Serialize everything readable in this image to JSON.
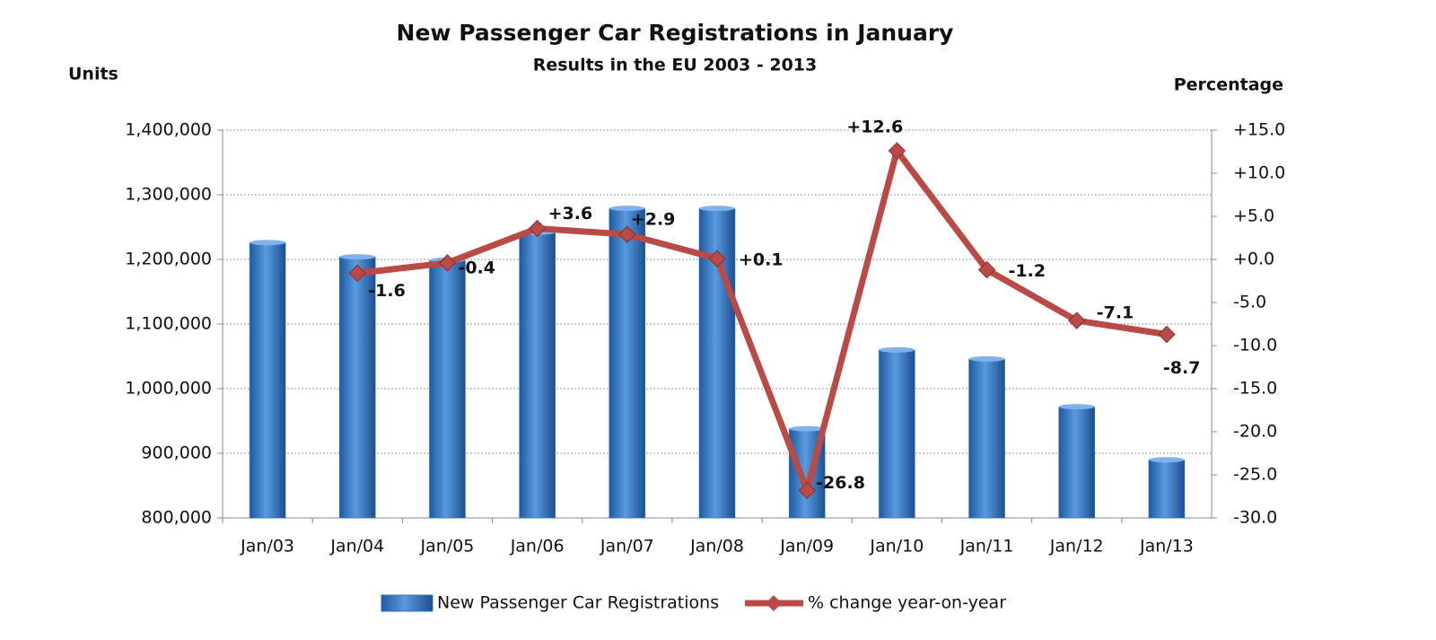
{
  "chart_data": {
    "type": "bar",
    "title": "New Passenger Car Registrations in January",
    "subtitle": "Results in the EU 2003 - 2013",
    "y_label": "Units",
    "y2_label": "Percentage",
    "categories": [
      "Jan/03",
      "Jan/04",
      "Jan/05",
      "Jan/06",
      "Jan/07",
      "Jan/08",
      "Jan/09",
      "Jan/10",
      "Jan/11",
      "Jan/12",
      "Jan/13"
    ],
    "series": [
      {
        "name": "New Passenger Car Registrations",
        "type": "bar",
        "color": "#2f73c0",
        "values": [
          1226000,
          1204000,
          1199000,
          1242000,
          1279000,
          1279000,
          938000,
          1060000,
          1046000,
          972000,
          890000
        ]
      },
      {
        "name": "% change year-on-year",
        "type": "line",
        "axis": "y2",
        "color": "#b94a45",
        "values": [
          null,
          -1.6,
          -0.4,
          3.6,
          2.9,
          0.1,
          -26.8,
          12.6,
          -1.2,
          -7.1,
          -8.7
        ],
        "value_labels": [
          null,
          "-1.6",
          "-0.4",
          "+3.6",
          "+2.9",
          "+0.1",
          "-26.8",
          "+12.6",
          "-1.2",
          "-7.1",
          "-8.7"
        ]
      }
    ],
    "ylim": [
      800000,
      1400000
    ],
    "yticks": [
      {
        "value": 800000,
        "label": "800,000"
      },
      {
        "value": 900000,
        "label": "900,000"
      },
      {
        "value": 1000000,
        "label": "1,000,000"
      },
      {
        "value": 1100000,
        "label": "1,100,000"
      },
      {
        "value": 1200000,
        "label": "1,200,000"
      },
      {
        "value": 1300000,
        "label": "1,300,000"
      },
      {
        "value": 1400000,
        "label": "1,400,000"
      }
    ],
    "y2lim": [
      -30,
      15
    ],
    "y2ticks": [
      {
        "value": -30,
        "label": "-30.0"
      },
      {
        "value": -25,
        "label": "-25.0"
      },
      {
        "value": -20,
        "label": "-20.0"
      },
      {
        "value": -15,
        "label": "-15.0"
      },
      {
        "value": -10,
        "label": "-10.0"
      },
      {
        "value": -5,
        "label": "-5.0"
      },
      {
        "value": 0,
        "label": "+0.0"
      },
      {
        "value": 5,
        "label": "+5.0"
      },
      {
        "value": 10,
        "label": "+10.0"
      },
      {
        "value": 15,
        "label": "+15.0"
      }
    ],
    "grid": true,
    "legend": "bottom",
    "positive_color": "#1f2aa8",
    "negative_color": "#c8201e"
  }
}
